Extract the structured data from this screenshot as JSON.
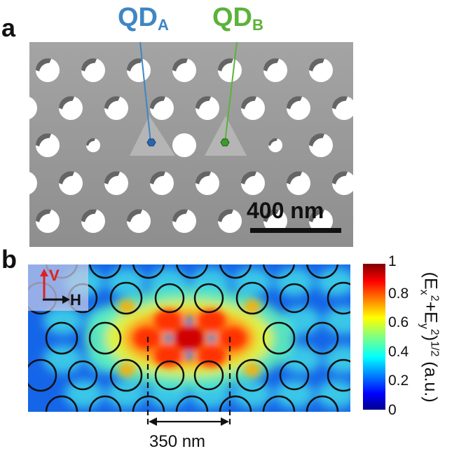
{
  "panel_a": {
    "letter": "a",
    "qd_a": {
      "main": "QD",
      "sub": "A",
      "color": "#3f86c4"
    },
    "qd_b": {
      "main": "QD",
      "sub": "B",
      "color": "#5cb23a"
    },
    "scale_bar_label": "400 nm",
    "slab_color": "#9a9a9a"
  },
  "panel_b": {
    "letter": "b",
    "polarization_v": "V",
    "polarization_h": "H",
    "dimension_label": "350 nm",
    "colorbar": {
      "ticks": [
        "1",
        "0.8",
        "0.6",
        "0.4",
        "0.2",
        "0"
      ],
      "label_E1": "(E",
      "label_x": "x",
      "label_2a": "2",
      "label_plusE": "+E",
      "label_y": "y",
      "label_2b": "2",
      "label_tail": ")",
      "label_exp": "1/2",
      "label_unit": " (a.u.)",
      "colormap": "jet"
    }
  }
}
